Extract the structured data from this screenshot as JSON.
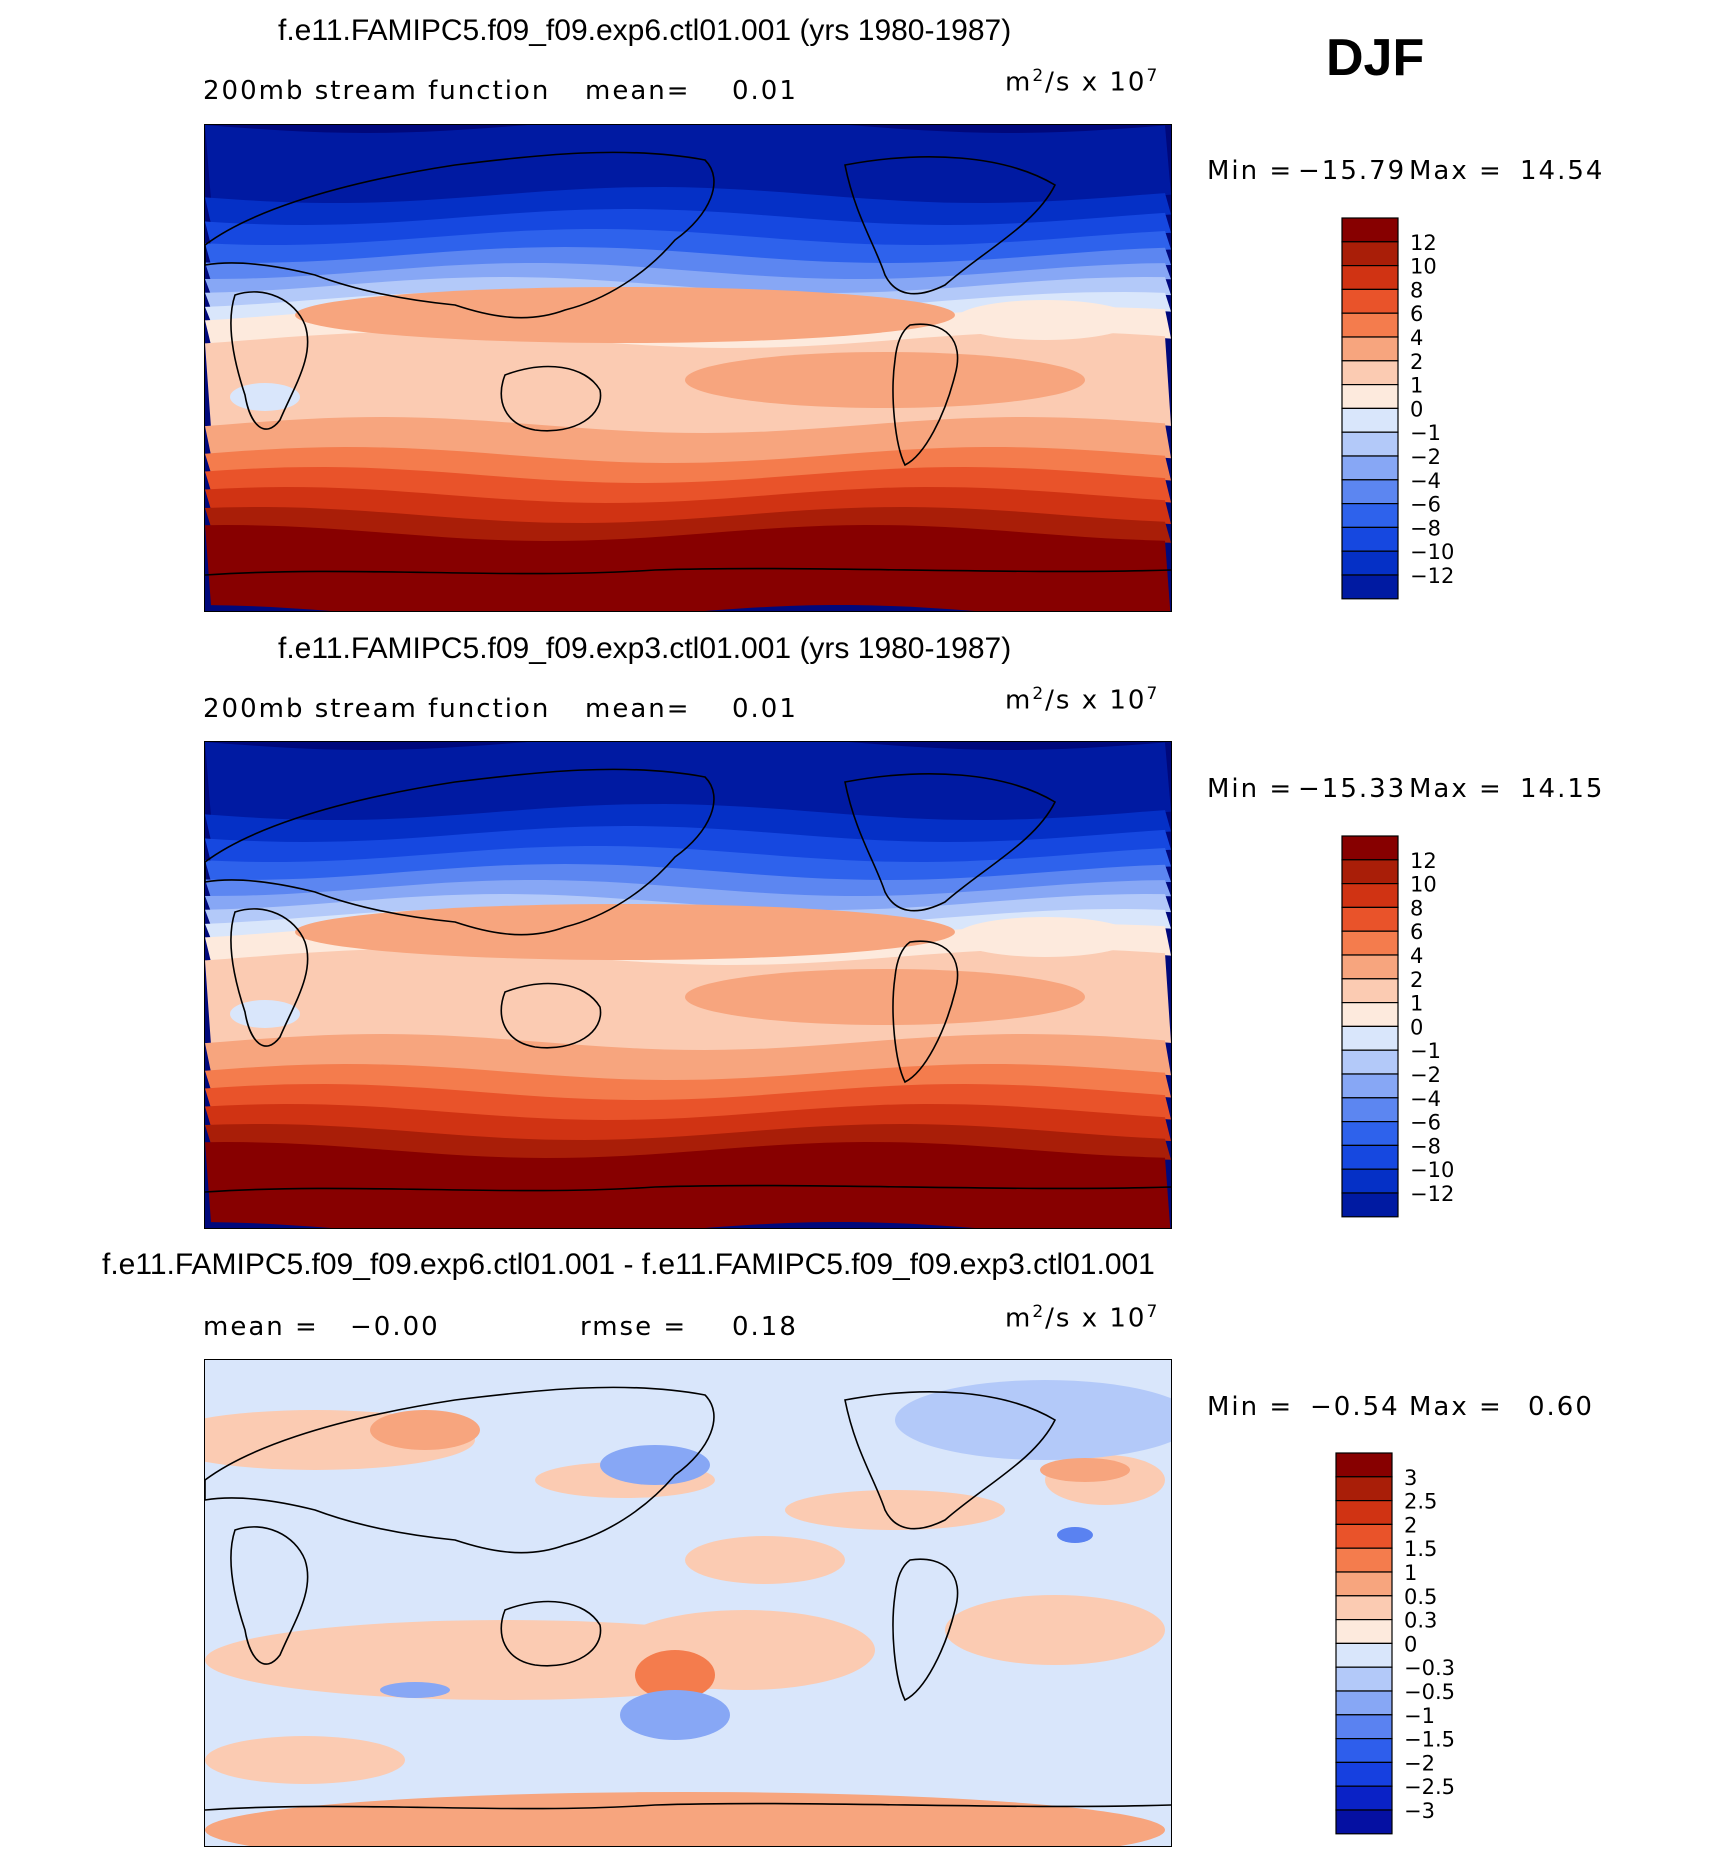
{
  "season": "DJF",
  "colors": {
    "ref_palette": [
      "#00087b",
      "#001aa2",
      "#0530c6",
      "#1648e0",
      "#2e62ec",
      "#5c86f1",
      "#87a7f5",
      "#b3c9f9",
      "#d9e6fb",
      "#fdeadd",
      "#fbcbb2",
      "#f7a57e",
      "#f47c4d",
      "#e9532a",
      "#d03313",
      "#a91e08",
      "#870000"
    ],
    "diff_palette": [
      "#00087b",
      "#0510a2",
      "#0a22c6",
      "#1640e0",
      "#2e5eec",
      "#5a82f1",
      "#87a7f5",
      "#b3c9f9",
      "#d9e6fb",
      "#fdeadd",
      "#fbcbb2",
      "#f7a57e",
      "#f47c4d",
      "#e9532a",
      "#d03313",
      "#a91e08",
      "#870000"
    ]
  },
  "panels": [
    {
      "title": "f.e11.FAMIPC5.f09_f09.exp6.ctl01.001 (yrs 1980-1987)",
      "variable": "200mb stream function",
      "stat_left_label": "mean=",
      "stat_left_value": "0.01",
      "stat_right_label": "",
      "stat_right_value": "",
      "units_base": "m",
      "units_exp": "2",
      "units_mid": "/s x 10",
      "units_scale_exp": "7",
      "min_label": "Min =",
      "min_value": "−15.79",
      "max_label": "Max =",
      "max_value": "14.54",
      "colorbar_labels": [
        "12",
        "10",
        "8",
        "6",
        "4",
        "2",
        "1",
        "0",
        "−1",
        "−2",
        "−4",
        "−6",
        "−8",
        "−10",
        "−12"
      ]
    },
    {
      "title": "f.e11.FAMIPC5.f09_f09.exp3.ctl01.001 (yrs 1980-1987)",
      "variable": "200mb stream function",
      "stat_left_label": "mean=",
      "stat_left_value": "0.01",
      "stat_right_label": "",
      "stat_right_value": "",
      "units_base": "m",
      "units_exp": "2",
      "units_mid": "/s x 10",
      "units_scale_exp": "7",
      "min_label": "Min =",
      "min_value": "−15.33",
      "max_label": "Max =",
      "max_value": "14.15",
      "colorbar_labels": [
        "12",
        "10",
        "8",
        "6",
        "4",
        "2",
        "1",
        "0",
        "−1",
        "−2",
        "−4",
        "−6",
        "−8",
        "−10",
        "−12"
      ]
    },
    {
      "title": "f.e11.FAMIPC5.f09_f09.exp6.ctl01.001 - f.e11.FAMIPC5.f09_f09.exp3.ctl01.001",
      "variable": "",
      "stat_left_label": "mean =",
      "stat_left_value": "−0.00",
      "stat_right_label": "rmse =",
      "stat_right_value": "0.18",
      "units_base": "m",
      "units_exp": "2",
      "units_mid": "/s x 10",
      "units_scale_exp": "7",
      "min_label": "Min =",
      "min_value": "−0.54",
      "max_label": "Max =",
      "max_value": "0.60",
      "colorbar_labels": [
        "3",
        "2.5",
        "2",
        "1.5",
        "1",
        "0.5",
        "0.3",
        "0",
        "−0.3",
        "−0.5",
        "−1",
        "−1.5",
        "−2",
        "−2.5",
        "−3"
      ]
    }
  ],
  "chart_data": [
    {
      "type": "heatmap",
      "title": "f.e11.FAMIPC5.f09_f09.exp6.ctl01.001 (yrs 1980-1987)",
      "subtitle": "200mb stream function",
      "units": "m^2/s x 10^7",
      "mean": 0.01,
      "min": -15.79,
      "max": 14.54,
      "contour_levels": [
        -12,
        -10,
        -8,
        -6,
        -4,
        -2,
        -1,
        0,
        1,
        2,
        4,
        6,
        8,
        10,
        12
      ],
      "latitude_bands_value": [
        -13,
        -11,
        -9,
        -7,
        -5,
        -3,
        -1.5,
        -0.5,
        0.5,
        1.5,
        3,
        5,
        7,
        9,
        11,
        13
      ],
      "pattern": "strong negative north of ~30N, positive south of equator, maximum over Antarctica"
    },
    {
      "type": "heatmap",
      "title": "f.e11.FAMIPC5.f09_f09.exp3.ctl01.001 (yrs 1980-1987)",
      "subtitle": "200mb stream function",
      "units": "m^2/s x 10^7",
      "mean": 0.01,
      "min": -15.33,
      "max": 14.15,
      "contour_levels": [
        -12,
        -10,
        -8,
        -6,
        -4,
        -2,
        -1,
        0,
        1,
        2,
        4,
        6,
        8,
        10,
        12
      ]
    },
    {
      "type": "heatmap",
      "title": "f.e11.FAMIPC5.f09_f09.exp6.ctl01.001 - f.e11.FAMIPC5.f09_f09.exp3.ctl01.001",
      "units": "m^2/s x 10^7",
      "mean": -0.0,
      "rmse": 0.18,
      "min": -0.54,
      "max": 0.6,
      "contour_levels": [
        -3,
        -2.5,
        -2,
        -1.5,
        -1,
        -0.5,
        -0.3,
        0,
        0.3,
        0.5,
        1,
        1.5,
        2,
        2.5,
        3
      ]
    }
  ]
}
